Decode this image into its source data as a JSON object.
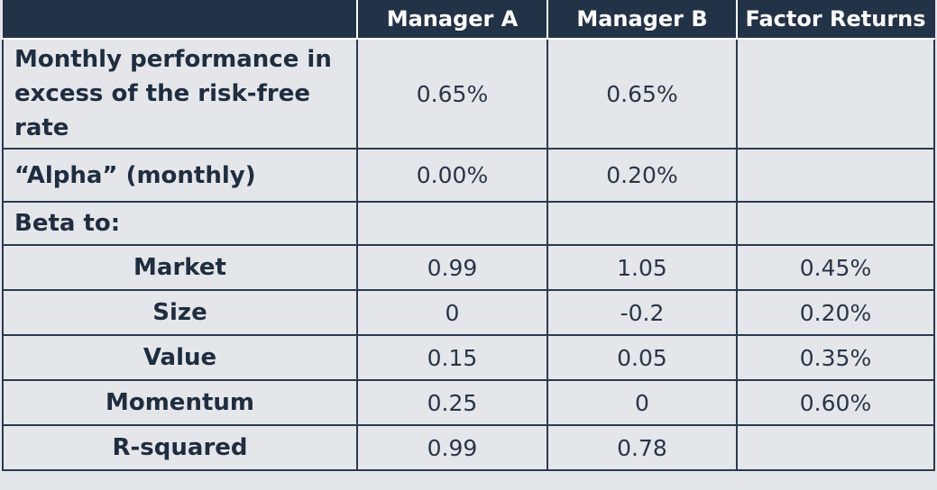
{
  "header": {
    "corner": "",
    "columns": [
      "Manager A",
      "Manager B",
      "Factor Returns"
    ]
  },
  "rows": {
    "perf": {
      "label": "Monthly performance in excess of the risk-free rate",
      "a": "0.65%",
      "b": "0.65%",
      "f": ""
    },
    "alpha": {
      "label": "“Alpha” (monthly)",
      "a": "0.00%",
      "b": "0.20%",
      "f": ""
    },
    "beta_to": {
      "label": "Beta to:",
      "a": "",
      "b": "",
      "f": ""
    },
    "market": {
      "label": "Market",
      "a": "0.99",
      "b": "1.05",
      "f": "0.45%"
    },
    "size": {
      "label": "Size",
      "a": "0",
      "b": "-0.2",
      "f": "0.20%"
    },
    "value": {
      "label": "Value",
      "a": "0.15",
      "b": "0.05",
      "f": "0.35%"
    },
    "momentum": {
      "label": "Momentum",
      "a": "0.25",
      "b": "0",
      "f": "0.60%"
    },
    "rsquared": {
      "label": "R-squared",
      "a": "0.99",
      "b": "0.78",
      "f": ""
    }
  }
}
